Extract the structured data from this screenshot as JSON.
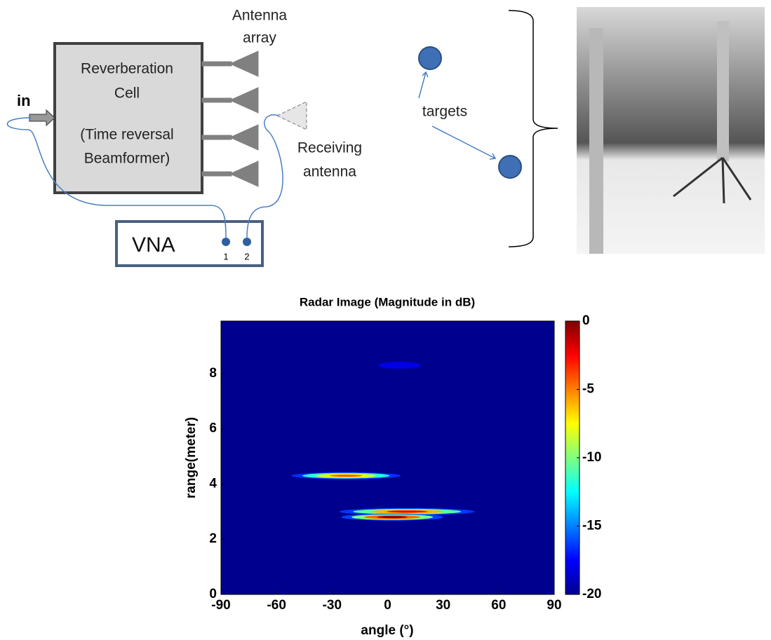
{
  "diagram": {
    "cell": [
      "Reverberation",
      "Cell",
      "(Time reversal",
      "Beamformer)"
    ],
    "input": "in",
    "antenna_array": [
      "Antenna",
      "array"
    ],
    "receiving": [
      "Receiving",
      "antenna"
    ],
    "vna": "VNA",
    "ports": [
      "1",
      "2"
    ],
    "targets": "targets"
  },
  "chart_data": {
    "type": "heatmap",
    "title": "Radar Image (Magnitude in dB)",
    "xlabel": "angle (°)",
    "ylabel": "range(meter)",
    "xlim": [
      -90,
      90
    ],
    "xticks": [
      -90,
      -60,
      -30,
      0,
      30,
      60,
      90
    ],
    "ylim": [
      0,
      9.9
    ],
    "yticks": [
      0,
      2,
      4,
      6,
      8
    ],
    "clim": [
      -20,
      0
    ],
    "cticks": [
      -20,
      -15,
      -10,
      -5,
      0
    ],
    "spots": [
      {
        "x0": -52,
        "x1": 7,
        "y": 4.3,
        "value": -4
      },
      {
        "x0": -26,
        "x1": 47,
        "y": 3.0,
        "value": -2
      },
      {
        "x0": -25,
        "x1": 30,
        "y": 2.8,
        "value": 0
      },
      {
        "x0": -5,
        "x1": 18,
        "y": 8.3,
        "value": -18
      }
    ]
  }
}
